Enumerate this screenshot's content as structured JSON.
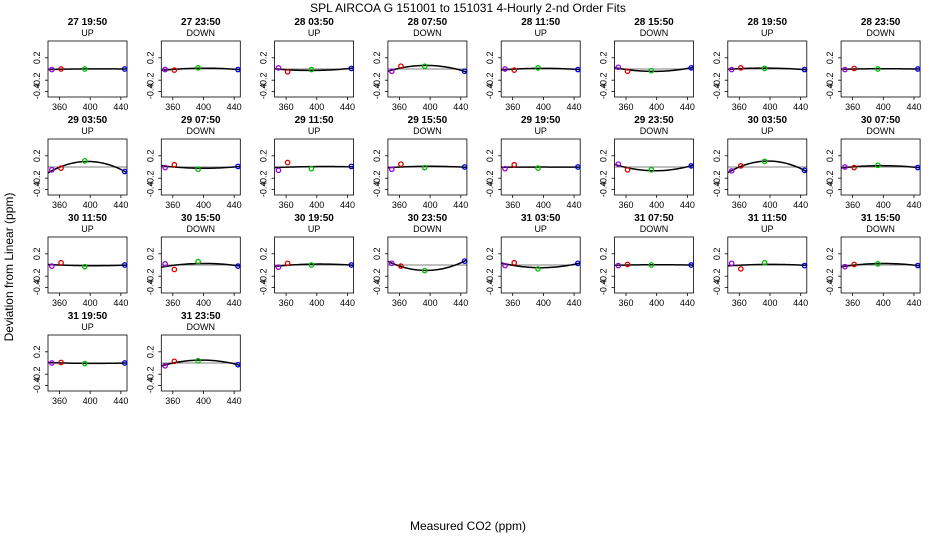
{
  "title": "SPL   AIRCOA G   151001 to 151031   4-Hourly 2-nd Order Fits",
  "xlabel": "Measured CO2 (ppm)",
  "ylabel": "Deviation from Linear (ppm)",
  "chart_data": {
    "type": "scatter",
    "layout": "small-multiples 8 columns x 4 rows",
    "xlim": [
      345,
      448
    ],
    "ylim": [
      -0.5,
      0.5
    ],
    "xticks": [
      "360",
      "400",
      "440"
    ],
    "yticks": [
      "0.2",
      "-0.2",
      "-0.4"
    ],
    "xtick_values": [
      360,
      400,
      440
    ],
    "ytick_values": [
      0.2,
      -0.2,
      -0.4
    ],
    "standard_x": [
      350,
      362,
      393,
      445
    ],
    "standard_colors": [
      "#a000e0",
      "#dd0000",
      "#00bb00",
      "#0000dd"
    ],
    "panels": [
      {
        "title": "27 19:50",
        "subtitle": "UP",
        "y": [
          -0.01,
          0.0,
          0.0,
          0.0
        ]
      },
      {
        "title": "27 23:50",
        "subtitle": "DOWN",
        "y": [
          -0.01,
          -0.02,
          0.02,
          -0.01
        ]
      },
      {
        "title": "28 03:50",
        "subtitle": "UP",
        "y": [
          0.02,
          -0.05,
          -0.01,
          0.01
        ]
      },
      {
        "title": "28 07:50",
        "subtitle": "DOWN",
        "y": [
          -0.04,
          0.05,
          0.05,
          -0.04
        ]
      },
      {
        "title": "28 11:50",
        "subtitle": "UP",
        "y": [
          0.0,
          -0.02,
          0.02,
          -0.01
        ]
      },
      {
        "title": "28 15:50",
        "subtitle": "DOWN",
        "y": [
          0.03,
          -0.04,
          -0.03,
          0.02
        ]
      },
      {
        "title": "28 19:50",
        "subtitle": "UP",
        "y": [
          -0.01,
          0.02,
          0.01,
          -0.01
        ]
      },
      {
        "title": "28 23:50",
        "subtitle": "DOWN",
        "y": [
          -0.01,
          0.01,
          0.0,
          0.0
        ]
      },
      {
        "title": "29 03:50",
        "subtitle": "UP",
        "y": [
          -0.05,
          -0.02,
          0.11,
          -0.08
        ]
      },
      {
        "title": "29 07:50",
        "subtitle": "DOWN",
        "y": [
          -0.01,
          0.04,
          -0.04,
          0.01
        ]
      },
      {
        "title": "29 11:50",
        "subtitle": "UP",
        "y": [
          -0.06,
          0.08,
          -0.03,
          0.01
        ]
      },
      {
        "title": "29 15:50",
        "subtitle": "DOWN",
        "y": [
          -0.04,
          0.05,
          -0.01,
          0.0
        ]
      },
      {
        "title": "29 19:50",
        "subtitle": "UP",
        "y": [
          -0.03,
          0.04,
          -0.02,
          0.0
        ]
      },
      {
        "title": "29 23:50",
        "subtitle": "DOWN",
        "y": [
          0.05,
          -0.05,
          -0.05,
          0.02
        ]
      },
      {
        "title": "30 03:50",
        "subtitle": "UP",
        "y": [
          -0.07,
          0.02,
          0.1,
          -0.06
        ]
      },
      {
        "title": "30 07:50",
        "subtitle": "DOWN",
        "y": [
          0.0,
          -0.01,
          0.03,
          -0.01
        ]
      },
      {
        "title": "30 11:50",
        "subtitle": "UP",
        "y": [
          -0.02,
          0.04,
          -0.03,
          0.0
        ]
      },
      {
        "title": "30 15:50",
        "subtitle": "DOWN",
        "y": [
          0.02,
          -0.08,
          0.06,
          -0.02
        ]
      },
      {
        "title": "30 19:50",
        "subtitle": "UP",
        "y": [
          -0.04,
          0.03,
          0.0,
          0.0
        ]
      },
      {
        "title": "30 23:50",
        "subtitle": "DOWN",
        "y": [
          0.03,
          -0.02,
          -0.1,
          0.07
        ]
      },
      {
        "title": "31 03:50",
        "subtitle": "UP",
        "y": [
          -0.01,
          0.04,
          -0.07,
          0.03
        ]
      },
      {
        "title": "31 07:50",
        "subtitle": "DOWN",
        "y": [
          -0.01,
          0.01,
          0.0,
          0.0
        ]
      },
      {
        "title": "31 11:50",
        "subtitle": "UP",
        "y": [
          0.03,
          -0.07,
          0.04,
          -0.01
        ]
      },
      {
        "title": "31 15:50",
        "subtitle": "DOWN",
        "y": [
          -0.03,
          0.01,
          0.02,
          -0.01
        ]
      },
      {
        "title": "31 19:50",
        "subtitle": "UP",
        "y": [
          0.0,
          0.01,
          -0.01,
          0.0
        ]
      },
      {
        "title": "31 23:50",
        "subtitle": "DOWN",
        "y": [
          -0.05,
          0.03,
          0.04,
          -0.03
        ]
      }
    ]
  }
}
